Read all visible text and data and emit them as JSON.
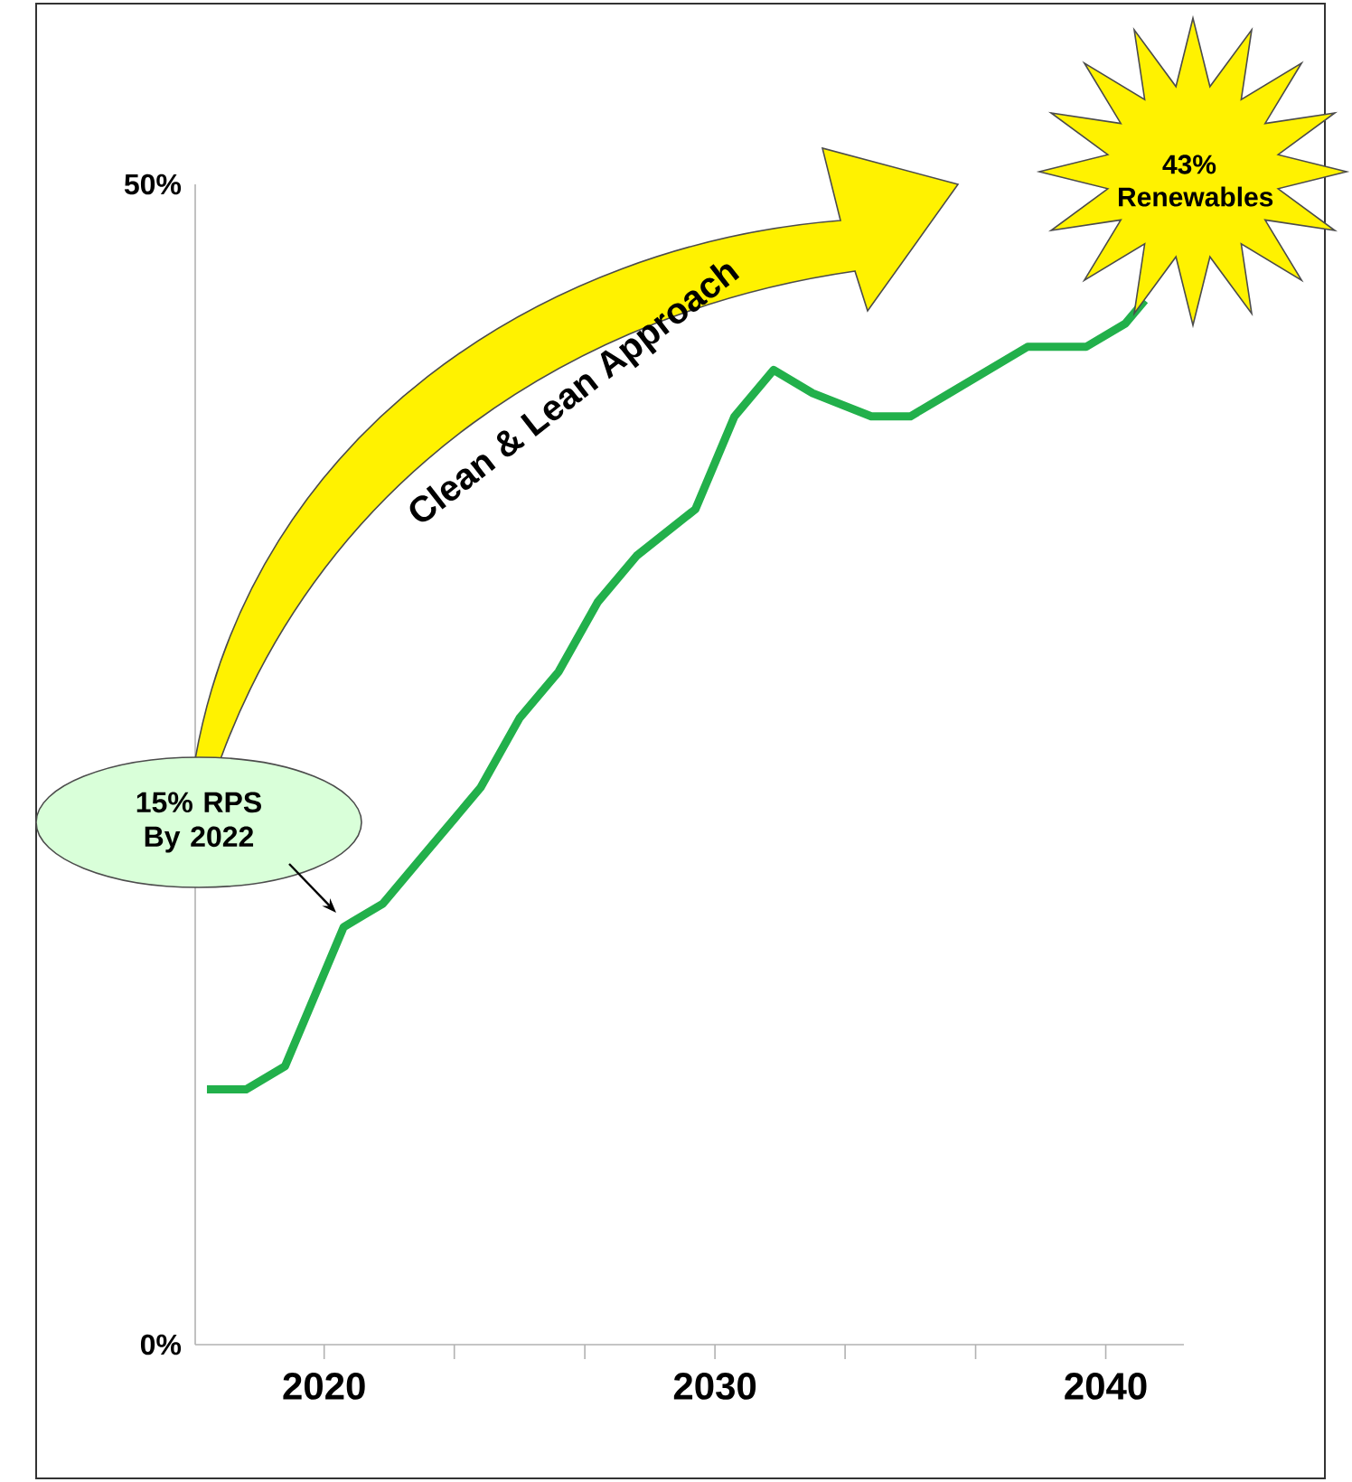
{
  "chart_data": {
    "type": "line",
    "x": [
      2017,
      2018,
      2019,
      2020.5,
      2021.5,
      2022.5,
      2024,
      2025,
      2026,
      2027,
      2028,
      2029.5,
      2030.5,
      2031.5,
      2032.5,
      2034,
      2035,
      2036,
      2037,
      2038,
      2039.5,
      2040.5,
      2041
    ],
    "series": [
      {
        "color": "#22b04b",
        "values": [
          11,
          11,
          12,
          18,
          19,
          21,
          24,
          27,
          29,
          32,
          34,
          36,
          40,
          42,
          41,
          40,
          40,
          41,
          42,
          43,
          43,
          44,
          45
        ]
      }
    ],
    "xlim": [
      2016.7,
      2042
    ],
    "ylim": [
      0,
      50
    ],
    "xticks": [
      2020,
      {
        "value": 2023.33,
        "label": null
      },
      {
        "value": 2026.67,
        "label": null
      },
      2030,
      {
        "value": 2033.33,
        "label": null
      },
      {
        "value": 2036.67,
        "label": null
      },
      2040
    ],
    "yticks": [
      {
        "value": 0,
        "label": "0%"
      },
      {
        "value": 50,
        "label": "50%"
      }
    ],
    "line_style": "solid",
    "annotations": [
      "Clean & Lean Approach",
      "43% Renewables",
      "15% RPS By 2022"
    ]
  }
}
